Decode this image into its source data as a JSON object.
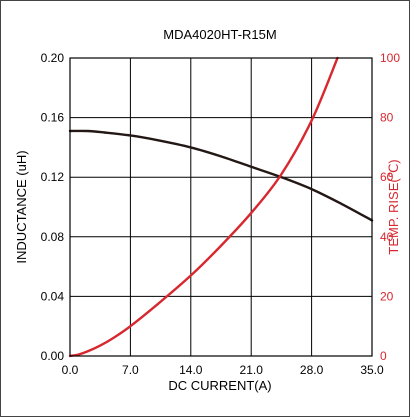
{
  "chart_data": {
    "type": "line",
    "title": "MDA4020HT-R15M",
    "xlabel": "DC CURRENT(A)",
    "ylabel_left": "INDUCTANCE (uH)",
    "ylabel_right": "TEMP. RISE(℃)",
    "xlim": [
      0,
      35
    ],
    "ylim_left": [
      0,
      0.2
    ],
    "ylim_right": [
      0,
      100
    ],
    "x_ticks": [
      "0.0",
      "7.0",
      "14.0",
      "21.0",
      "28.0",
      "35.0"
    ],
    "y_ticks_left": [
      "0.00",
      "0.04",
      "0.08",
      "0.12",
      "0.16",
      "0.20"
    ],
    "y_ticks_right": [
      "0",
      "20",
      "40",
      "60",
      "80",
      "100"
    ],
    "grid": true,
    "colors": {
      "inductance": "#231815",
      "temp_rise": "#d7282f",
      "axis": "#000000",
      "frame": "#444444"
    },
    "series": [
      {
        "axis": "left",
        "color": "#231815",
        "x": [
          0,
          2,
          4,
          7,
          10,
          14,
          17.5,
          21,
          24.5,
          28,
          31.5,
          35
        ],
        "y": [
          0.151,
          0.151,
          0.15,
          0.148,
          0.145,
          0.14,
          0.134,
          0.127,
          0.12,
          0.112,
          0.102,
          0.091
        ]
      },
      {
        "axis": "right",
        "color": "#d7282f",
        "x": [
          0,
          1,
          2,
          3.5,
          5,
          7,
          10,
          14,
          17.5,
          21,
          24.5,
          28,
          31
        ],
        "y": [
          0,
          0.5,
          1.5,
          3.5,
          6,
          10,
          17,
          27,
          37,
          48,
          61,
          79,
          100
        ]
      }
    ]
  }
}
